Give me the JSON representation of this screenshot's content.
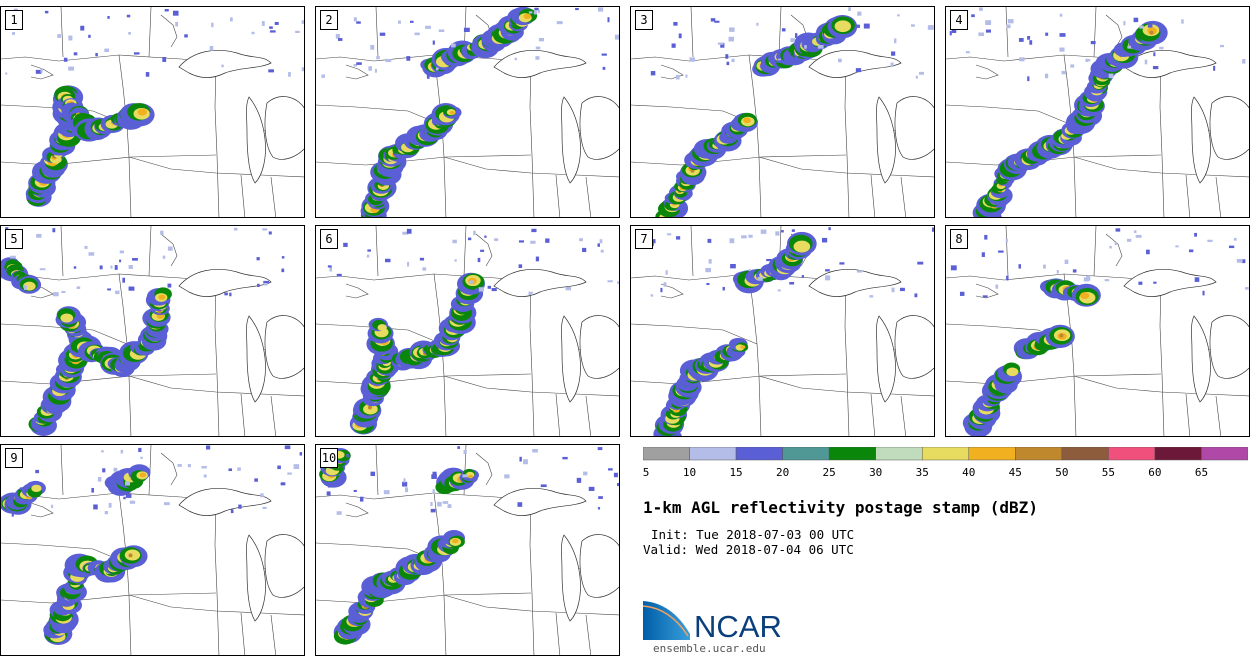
{
  "panels": [
    {
      "label": "1"
    },
    {
      "label": "2"
    },
    {
      "label": "3"
    },
    {
      "label": "4"
    },
    {
      "label": "5"
    },
    {
      "label": "6"
    },
    {
      "label": "7"
    },
    {
      "label": "8"
    },
    {
      "label": "9"
    },
    {
      "label": "10"
    }
  ],
  "chart_data": {
    "type": "heatmap",
    "title": "1-km AGL reflectivity postage stamp (dBZ)",
    "init": "Init: Tue 2018-07-03 00 UTC",
    "valid": "Valid: Wed 2018-07-04 06 UTC",
    "colorbar": {
      "ticks": [
        "5",
        "10",
        "15",
        "20",
        "25",
        "30",
        "35",
        "40",
        "45",
        "50",
        "55",
        "60",
        "65"
      ],
      "bins": [
        {
          "from": 5,
          "to": 10,
          "color": "#a0a0a0"
        },
        {
          "from": 10,
          "to": 15,
          "color": "#b4bde8"
        },
        {
          "from": 15,
          "to": 20,
          "color": "#5a5fd6"
        },
        {
          "from": 20,
          "to": 25,
          "color": "#4f9896"
        },
        {
          "from": 25,
          "to": 30,
          "color": "#0a870a"
        },
        {
          "from": 30,
          "to": 35,
          "color": "#c0dcbc"
        },
        {
          "from": 35,
          "to": 40,
          "color": "#e8dc60"
        },
        {
          "from": 40,
          "to": 45,
          "color": "#f0b020"
        },
        {
          "from": 45,
          "to": 50,
          "color": "#c0882c"
        },
        {
          "from": 50,
          "to": 55,
          "color": "#8c5c3c"
        },
        {
          "from": 55,
          "to": 60,
          "color": "#f0507c"
        },
        {
          "from": 60,
          "to": 65,
          "color": "#6c1838"
        },
        {
          "from": 65,
          "to": 70,
          "color": "#b048a8"
        }
      ]
    }
  },
  "logo": {
    "text": "NCAR",
    "site": "ensemble.ucar.edu"
  }
}
